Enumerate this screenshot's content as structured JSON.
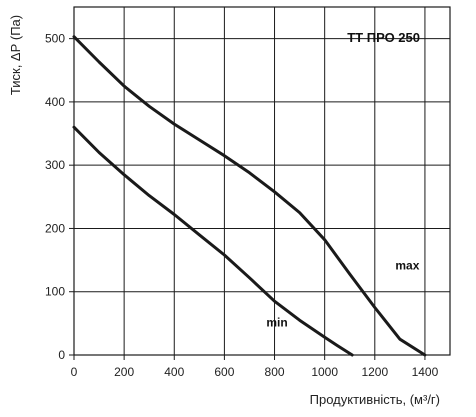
{
  "chart_data": {
    "type": "line",
    "title": "ТТ ПРО 250",
    "xlabel": "Продуктивність, (м³/г)",
    "ylabel": "Тиск, ΔР (Па)",
    "xlim": [
      0,
      1500
    ],
    "ylim": [
      0,
      550
    ],
    "x_ticks": [
      0,
      200,
      400,
      600,
      800,
      1000,
      1200,
      1400
    ],
    "y_ticks": [
      0,
      100,
      200,
      300,
      400,
      500
    ],
    "grid": true,
    "series": [
      {
        "name": "max",
        "x": [
          0,
          100,
          200,
          300,
          400,
          500,
          600,
          700,
          800,
          900,
          1000,
          1100,
          1200,
          1300,
          1400
        ],
        "y": [
          503,
          463,
          425,
          393,
          365,
          340,
          315,
          288,
          258,
          225,
          182,
          128,
          75,
          25,
          0
        ]
      },
      {
        "name": "min",
        "x": [
          0,
          100,
          200,
          300,
          400,
          500,
          600,
          700,
          800,
          900,
          1000,
          1050,
          1110
        ],
        "y": [
          360,
          320,
          285,
          252,
          222,
          190,
          158,
          122,
          85,
          55,
          28,
          15,
          0
        ]
      }
    ]
  }
}
